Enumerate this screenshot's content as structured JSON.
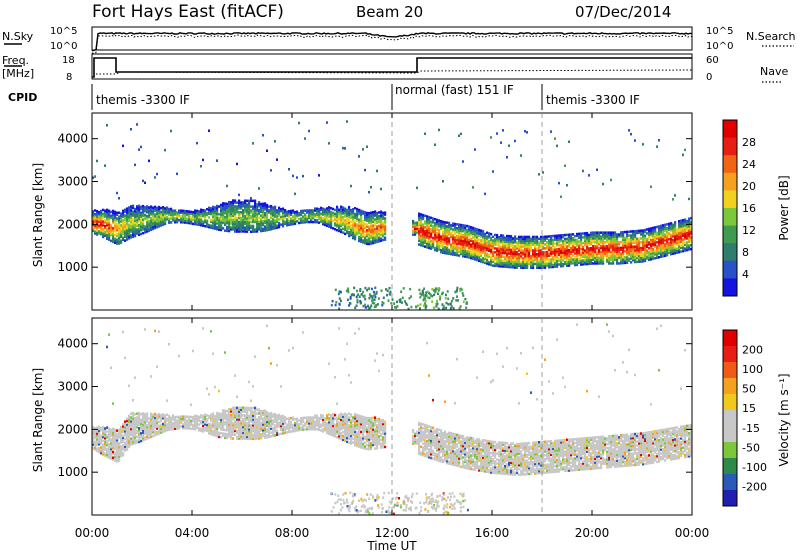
{
  "header": {
    "station": "Fort Hays East (fitACF)",
    "beam": "Beam 20",
    "date": "07/Dec/2014"
  },
  "top_panels": {
    "nsky_label": "N.Sky",
    "nsky_ticks": [
      "10^5",
      "10^0"
    ],
    "nsearch_label": "N.Search",
    "nsearch_ticks": [
      "10^5",
      "10^0"
    ],
    "freq_label_1": "Freq.",
    "freq_label_2": "[MHz]",
    "freq_ticks": [
      "18",
      "8"
    ],
    "nave_label": "Nave",
    "nave_ticks": [
      "60",
      "0"
    ],
    "cpid_label": "CPID",
    "cpid_segments": [
      {
        "label": "themis -3300 IF",
        "start_hour": 0
      },
      {
        "label": "normal (fast) 151 IF",
        "start_hour": 12
      },
      {
        "label": "themis -3300 IF",
        "start_hour": 18
      }
    ]
  },
  "x_axis": {
    "label": "Time UT",
    "ticks": [
      "00:00",
      "04:00",
      "08:00",
      "12:00",
      "16:00",
      "20:00",
      "00:00"
    ]
  },
  "colorbars": {
    "power": {
      "label": "Power [dB]",
      "ticks": [
        "4",
        "8",
        "12",
        "16",
        "20",
        "24",
        "28"
      ],
      "colors": [
        "#1414e0",
        "#2a52c8",
        "#2f7d6e",
        "#3f9b50",
        "#7cc83a",
        "#f0d21e",
        "#f5a01e",
        "#f06414",
        "#e81e14",
        "#e00000"
      ]
    },
    "velocity": {
      "label": "Velocity [m s⁻¹]",
      "ticks": [
        "200",
        "100",
        "50",
        "15",
        "-15",
        "-50",
        "-100",
        "-200"
      ],
      "colors": [
        "#2020b0",
        "#2a5ab8",
        "#2f8a4a",
        "#7cc83a",
        "#c8c8c8",
        "#c8c8c8",
        "#f0c81e",
        "#f5a01e",
        "#f05a14",
        "#e81e14",
        "#e00000"
      ]
    }
  },
  "chart_data": [
    {
      "type": "heatmap",
      "title": "Power",
      "ylabel": "Slant Range [km]",
      "xlabel": "",
      "ylim": [
        0,
        4600
      ],
      "yticks": [
        "1000",
        "2000",
        "3000",
        "4000"
      ],
      "xlim_hours": [
        0,
        24
      ],
      "x_ticks": [
        "00:00",
        "04:00",
        "08:00",
        "12:00",
        "16:00",
        "20:00",
        "00:00"
      ],
      "colorbar": "Power [dB]",
      "scatter_echo_band": {
        "description_values": "center slant range in km vs time in hours",
        "hours": [
          0,
          0.5,
          1.0,
          1.5,
          2.0,
          3.0,
          4.0,
          5.0,
          6.0,
          7.0,
          8.0,
          9.0,
          10.0,
          11.0,
          11.6,
          13.0,
          14.0,
          15.0,
          16.0,
          17.0,
          18.0,
          19.0,
          20.0,
          21.0,
          22.0,
          23.0,
          24.0
        ],
        "center_km": [
          2050,
          2000,
          1900,
          2050,
          2100,
          2200,
          2150,
          2150,
          2200,
          2150,
          2150,
          2200,
          2100,
          1900,
          1950,
          1900,
          1700,
          1600,
          1400,
          1350,
          1350,
          1400,
          1450,
          1450,
          1500,
          1650,
          1800
        ],
        "peak_power_db": [
          28,
          28,
          20,
          16,
          16,
          16,
          16,
          16,
          16,
          16,
          16,
          16,
          20,
          24,
          24,
          28,
          28,
          28,
          28,
          28,
          28,
          28,
          28,
          28,
          28,
          28,
          28
        ]
      }
    },
    {
      "type": "heatmap",
      "title": "Velocity",
      "ylabel": "Slant Range [km]",
      "xlabel": "Time UT",
      "ylim": [
        0,
        4600
      ],
      "yticks": [
        "1000",
        "2000",
        "3000",
        "4000"
      ],
      "xlim_hours": [
        0,
        24
      ],
      "x_ticks": [
        "00:00",
        "04:00",
        "08:00",
        "12:00",
        "16:00",
        "20:00",
        "00:00"
      ],
      "colorbar": "Velocity [m s⁻¹]",
      "scatter_echo_band": {
        "description_values": "center slant range in km vs time in hours; velocity mostly within +-15 m/s (grey)",
        "hours": [
          0,
          0.5,
          1.0,
          1.5,
          2.0,
          3.0,
          4.0,
          5.0,
          6.0,
          7.0,
          8.0,
          9.0,
          10.0,
          11.0,
          11.6,
          13.0,
          14.0,
          15.0,
          16.0,
          17.0,
          18.0,
          19.0,
          20.0,
          21.0,
          22.0,
          23.0,
          24.0
        ],
        "center_km": [
          1800,
          1700,
          1600,
          2000,
          2050,
          2150,
          2150,
          2100,
          2150,
          2100,
          2100,
          2150,
          2050,
          1900,
          1900,
          1800,
          1600,
          1450,
          1350,
          1300,
          1350,
          1400,
          1450,
          1500,
          1550,
          1650,
          1750
        ]
      }
    }
  ]
}
